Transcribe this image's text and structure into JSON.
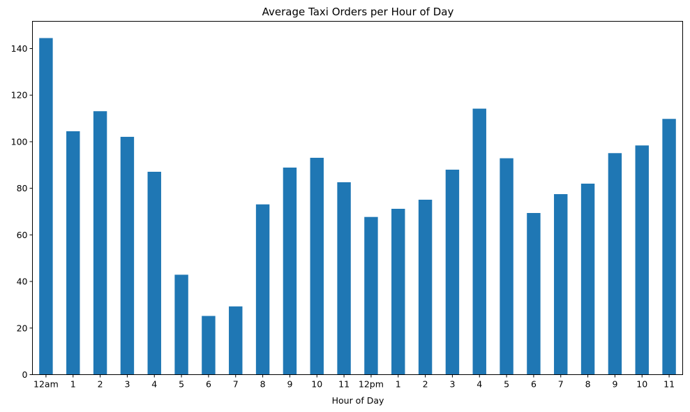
{
  "chart_data": {
    "type": "bar",
    "title": "Average Taxi Orders per Hour of Day",
    "xlabel": "Hour of Day",
    "ylabel": "",
    "categories": [
      "12am",
      "1",
      "2",
      "3",
      "4",
      "5",
      "6",
      "7",
      "8",
      "9",
      "10",
      "11",
      "12pm",
      "1",
      "2",
      "3",
      "4",
      "5",
      "6",
      "7",
      "8",
      "9",
      "10",
      "11"
    ],
    "values": [
      144.5,
      104.5,
      113.1,
      102.1,
      87.1,
      42.9,
      25.2,
      29.3,
      73.1,
      88.9,
      93.1,
      82.6,
      67.7,
      71.2,
      75.1,
      88.0,
      114.2,
      92.9,
      69.4,
      77.5,
      82.0,
      95.1,
      98.4,
      109.8
    ],
    "ylim": [
      0,
      151.7
    ],
    "yticks": [
      0,
      20,
      40,
      60,
      80,
      100,
      120,
      140
    ],
    "grid": false,
    "bar_color": "#1f77b4"
  }
}
